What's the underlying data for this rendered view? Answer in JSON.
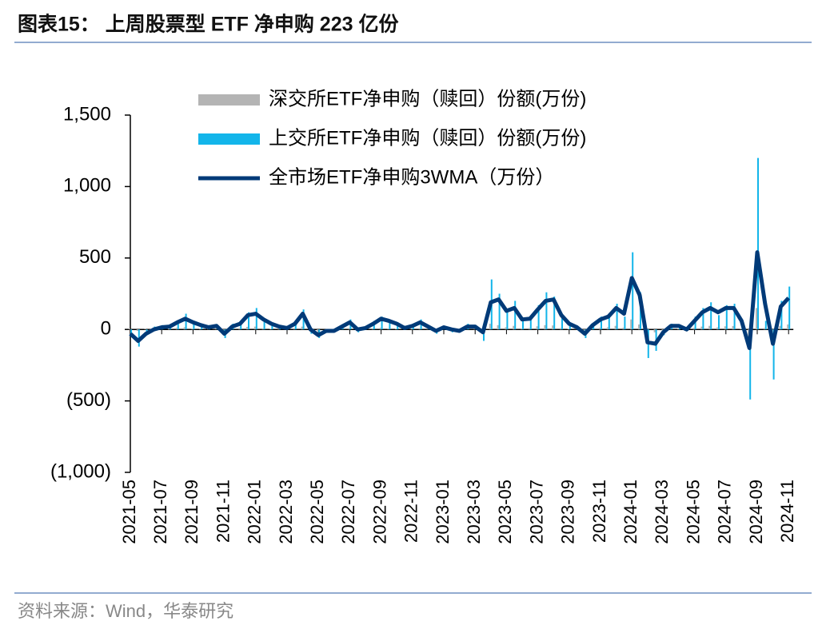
{
  "header": {
    "title": "图表15：  上周股票型 ETF 净申购 223 亿份"
  },
  "chart_data": {
    "type": "bar-line",
    "categories": [
      "2021-05",
      null,
      null,
      null,
      "2021-07",
      null,
      null,
      null,
      "2021-09",
      null,
      null,
      null,
      "2021-11",
      null,
      null,
      null,
      "2022-01",
      null,
      null,
      null,
      "2022-03",
      null,
      null,
      null,
      "2022-05",
      null,
      null,
      null,
      "2022-07",
      null,
      null,
      null,
      "2022-09",
      null,
      null,
      null,
      "2022-11",
      null,
      null,
      null,
      "2023-01",
      null,
      null,
      null,
      "2023-03",
      null,
      null,
      null,
      "2023-05",
      null,
      null,
      null,
      "2023-07",
      null,
      null,
      null,
      "2023-09",
      null,
      null,
      null,
      "2023-11",
      null,
      null,
      null,
      "2024-01",
      null,
      null,
      null,
      "2024-03",
      null,
      null,
      null,
      "2024-05",
      null,
      null,
      null,
      "2024-07",
      null,
      null,
      null,
      "2024-09",
      null,
      null,
      null,
      "2024-11"
    ],
    "series": [
      {
        "name": "深交所ETF净申购（赎回）份额(万份)",
        "type": "bar",
        "color": "#b4b4b4",
        "values": [
          5,
          -10,
          3,
          8,
          10,
          4,
          12,
          15,
          6,
          3,
          5,
          2,
          -8,
          6,
          9,
          18,
          20,
          8,
          4,
          2,
          3,
          9,
          20,
          -5,
          -9,
          -3,
          -2,
          4,
          10,
          -3,
          3,
          8,
          12,
          7,
          5,
          2,
          4,
          9,
          2,
          -4,
          3,
          -3,
          -3,
          6,
          2,
          -12,
          40,
          30,
          15,
          25,
          8,
          10,
          22,
          30,
          28,
          10,
          4,
          3,
          -8,
          6,
          12,
          15,
          25,
          12,
          70,
          35,
          -25,
          -20,
          -6,
          6,
          3,
          -2,
          12,
          20,
          25,
          14,
          22,
          24,
          6,
          -60,
          150,
          10,
          -40,
          25,
          35
        ]
      },
      {
        "name": "上交所ETF净申购（赎回）份额(万份)",
        "type": "bar",
        "color": "#13b5ea",
        "values": [
          -50,
          -120,
          -20,
          20,
          30,
          10,
          60,
          110,
          40,
          20,
          30,
          10,
          -60,
          40,
          60,
          120,
          150,
          60,
          30,
          10,
          20,
          60,
          140,
          -30,
          -60,
          -20,
          -10,
          30,
          70,
          -20,
          20,
          60,
          90,
          50,
          40,
          10,
          30,
          70,
          10,
          -30,
          20,
          -20,
          -20,
          40,
          10,
          -80,
          350,
          250,
          120,
          200,
          60,
          80,
          170,
          260,
          230,
          80,
          30,
          20,
          -60,
          40,
          90,
          110,
          180,
          90,
          540,
          260,
          -200,
          -150,
          -40,
          40,
          20,
          -10,
          90,
          150,
          190,
          100,
          170,
          180,
          40,
          -490,
          1200,
          60,
          -350,
          200,
          300
        ]
      },
      {
        "name": "全市场ETF净申购3WMA（万份）",
        "type": "line",
        "color": "#003a78",
        "values": [
          -30,
          -80,
          -30,
          0,
          15,
          20,
          50,
          75,
          50,
          30,
          15,
          25,
          -30,
          20,
          40,
          100,
          110,
          70,
          40,
          20,
          10,
          40,
          110,
          0,
          -40,
          -10,
          -10,
          20,
          50,
          0,
          10,
          40,
          75,
          60,
          40,
          10,
          25,
          50,
          20,
          -10,
          15,
          0,
          -10,
          20,
          20,
          -20,
          190,
          210,
          130,
          150,
          70,
          75,
          140,
          200,
          210,
          100,
          40,
          15,
          -30,
          30,
          70,
          90,
          150,
          110,
          360,
          240,
          -90,
          -100,
          -20,
          25,
          25,
          0,
          60,
          120,
          150,
          120,
          150,
          150,
          60,
          -130,
          540,
          180,
          -100,
          160,
          220
        ]
      }
    ],
    "ylim": [
      -1000,
      1500
    ],
    "yticks": [
      {
        "value": -1000,
        "label": "(1,000)"
      },
      {
        "value": -500,
        "label": "(500)"
      },
      0,
      500,
      {
        "value": 1000,
        "label": "1,000"
      },
      {
        "value": 1500,
        "label": "1,500"
      }
    ],
    "legend": "top-left"
  },
  "footer": {
    "source": "资料来源：Wind，华泰研究"
  }
}
